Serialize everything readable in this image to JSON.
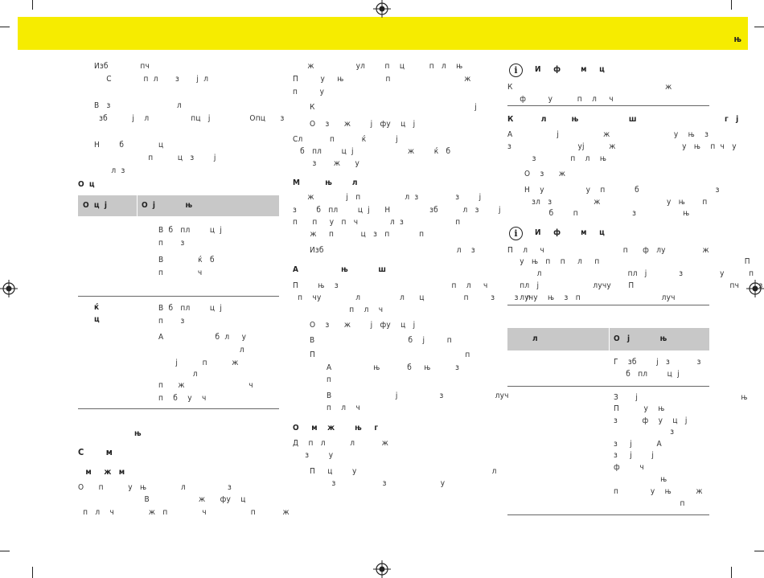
{
  "header": {
    "section_label": "њ"
  },
  "col1": {
    "lines": [
      "Изб             пч",
      "     С             п  л       з       ј  л",
      "В   з                           л",
      "  зб          ј    л                 пц   ј                Опц      з",
      "Н        б              ц",
      "                      п          ц   з        ј",
      "       л  з"
    ],
    "heading_oc": "О  ц",
    "table1": {
      "headers": [
        "О  ц  ј",
        "О  ј            њ"
      ],
      "row1": [
        "В  б   пл        ц  ј",
        "п       з",
        "В              ќ   б",
        "п              ч"
      ],
      "row2_label": [
        "ќ",
        "ц"
      ],
      "row2": [
        "В  б   пл        ц  ј",
        "п       з",
        "А                     б  л     у",
        "                                 л",
        "       ј          п          ж",
        "              л",
        "п      ж                          ч",
        "п    б    у    ч"
      ]
    },
    "heading_nj": "њ",
    "heading_s": "С        м",
    "heading_m": "   м     ж   м",
    "body_lines": [
      "О      п          у   њ              л                 з",
      "                           В                    ж      фу    ц",
      "  п   л    ч              ж   п              ч                  п           ж"
    ]
  },
  "col2": {
    "lines_a": [
      "      ж                 ул        п    ц          п   л    њ",
      "П         у     њ                 п                              ж",
      "п         у"
    ],
    "bullets_a": [
      "К                                                                 ј",
      "О    з      ж        ј   фу    ц   ј"
    ],
    "lines_b": [
      "Сл           п           ќ            ј",
      "   б   пл        ц  ј                      ж        ќ   б",
      "        з       ж      у"
    ],
    "heading_m": "М          њ        л",
    "lines_c": [
      "      ж             ј   п                  л  з               з        ј",
      "з        б   пл        ц  ј      Н                зб          л   з        ј",
      "п      п     у   п   ч             л  з                     п",
      "       ж     п           ц   з   п            п"
    ],
    "bullet_c": "Изб                                                      л    з",
    "heading_a": "А                 њ            ш",
    "lines_d": [
      "П        њ    з                                              п    л     ч",
      "  п    чу              л                л      ц                п         з        з   л",
      "                       п    л    ч"
    ],
    "bullets_d": [
      "О    з      ж        ј   фу    ц   ј",
      "В                                      б    ј         п",
      "П                                                             п"
    ],
    "sub_d": [
      "А                 њ           б     њ          з",
      "п",
      "В                          ј                 з                     луч",
      "п    л    ч"
    ],
    "heading_o": "О     м    ж        њ     г",
    "lines_e": [
      "Д    п   л          л           ж",
      "     з        у"
    ],
    "bullet_e": [
      "П     ц        у                                                       л",
      "         з                   з                      у"
    ]
  },
  "col3": {
    "info1_title": "И     ф        м     ц",
    "info1_lines": [
      "К                                                              ж",
      "     ф         у          п    л     ч"
    ],
    "heading_k": "К           л          њ                    ш                                   г   ј",
    "lines_a": [
      "А                  ј                  ж                          у    њ    з",
      "з                           уј          ж                           у   њ    п  ч   у",
      "          з              п    л    њ"
    ],
    "bullets_a": [
      "О    з      ж",
      "Н    у                 у    п            б                               з",
      "   зл   з                 ж                           у   њ       п",
      "          б        п                      з                   њ"
    ],
    "info2_title": "И     ф        м     ц",
    "info2_lines": [
      "П    л     ч                                п      ф   лу               ж",
      "     у   њ   п    п     л     п                                                           П",
      "            л                                   пл   ј             з               у          п",
      "     пл   ј                      лучу       П                                       пч        з",
      "     лучу    њ    з   п                                 луч"
    ],
    "table2": {
      "headers": [
        "        л",
        "О   ј            њ"
      ],
      "row1": [
        "Г    зб        ј   з           з",
        "     б   пл        ц  ј"
      ],
      "row2": [
        "З       ј                                          њ",
        "П          у    њ",
        "з          ф    у    ц   ј",
        "                       з",
        "з     ј          А",
        "з     ј        ј",
        "ф        ч",
        "                   њ",
        "п             у    њ          ж",
        "                           п"
      ]
    }
  }
}
